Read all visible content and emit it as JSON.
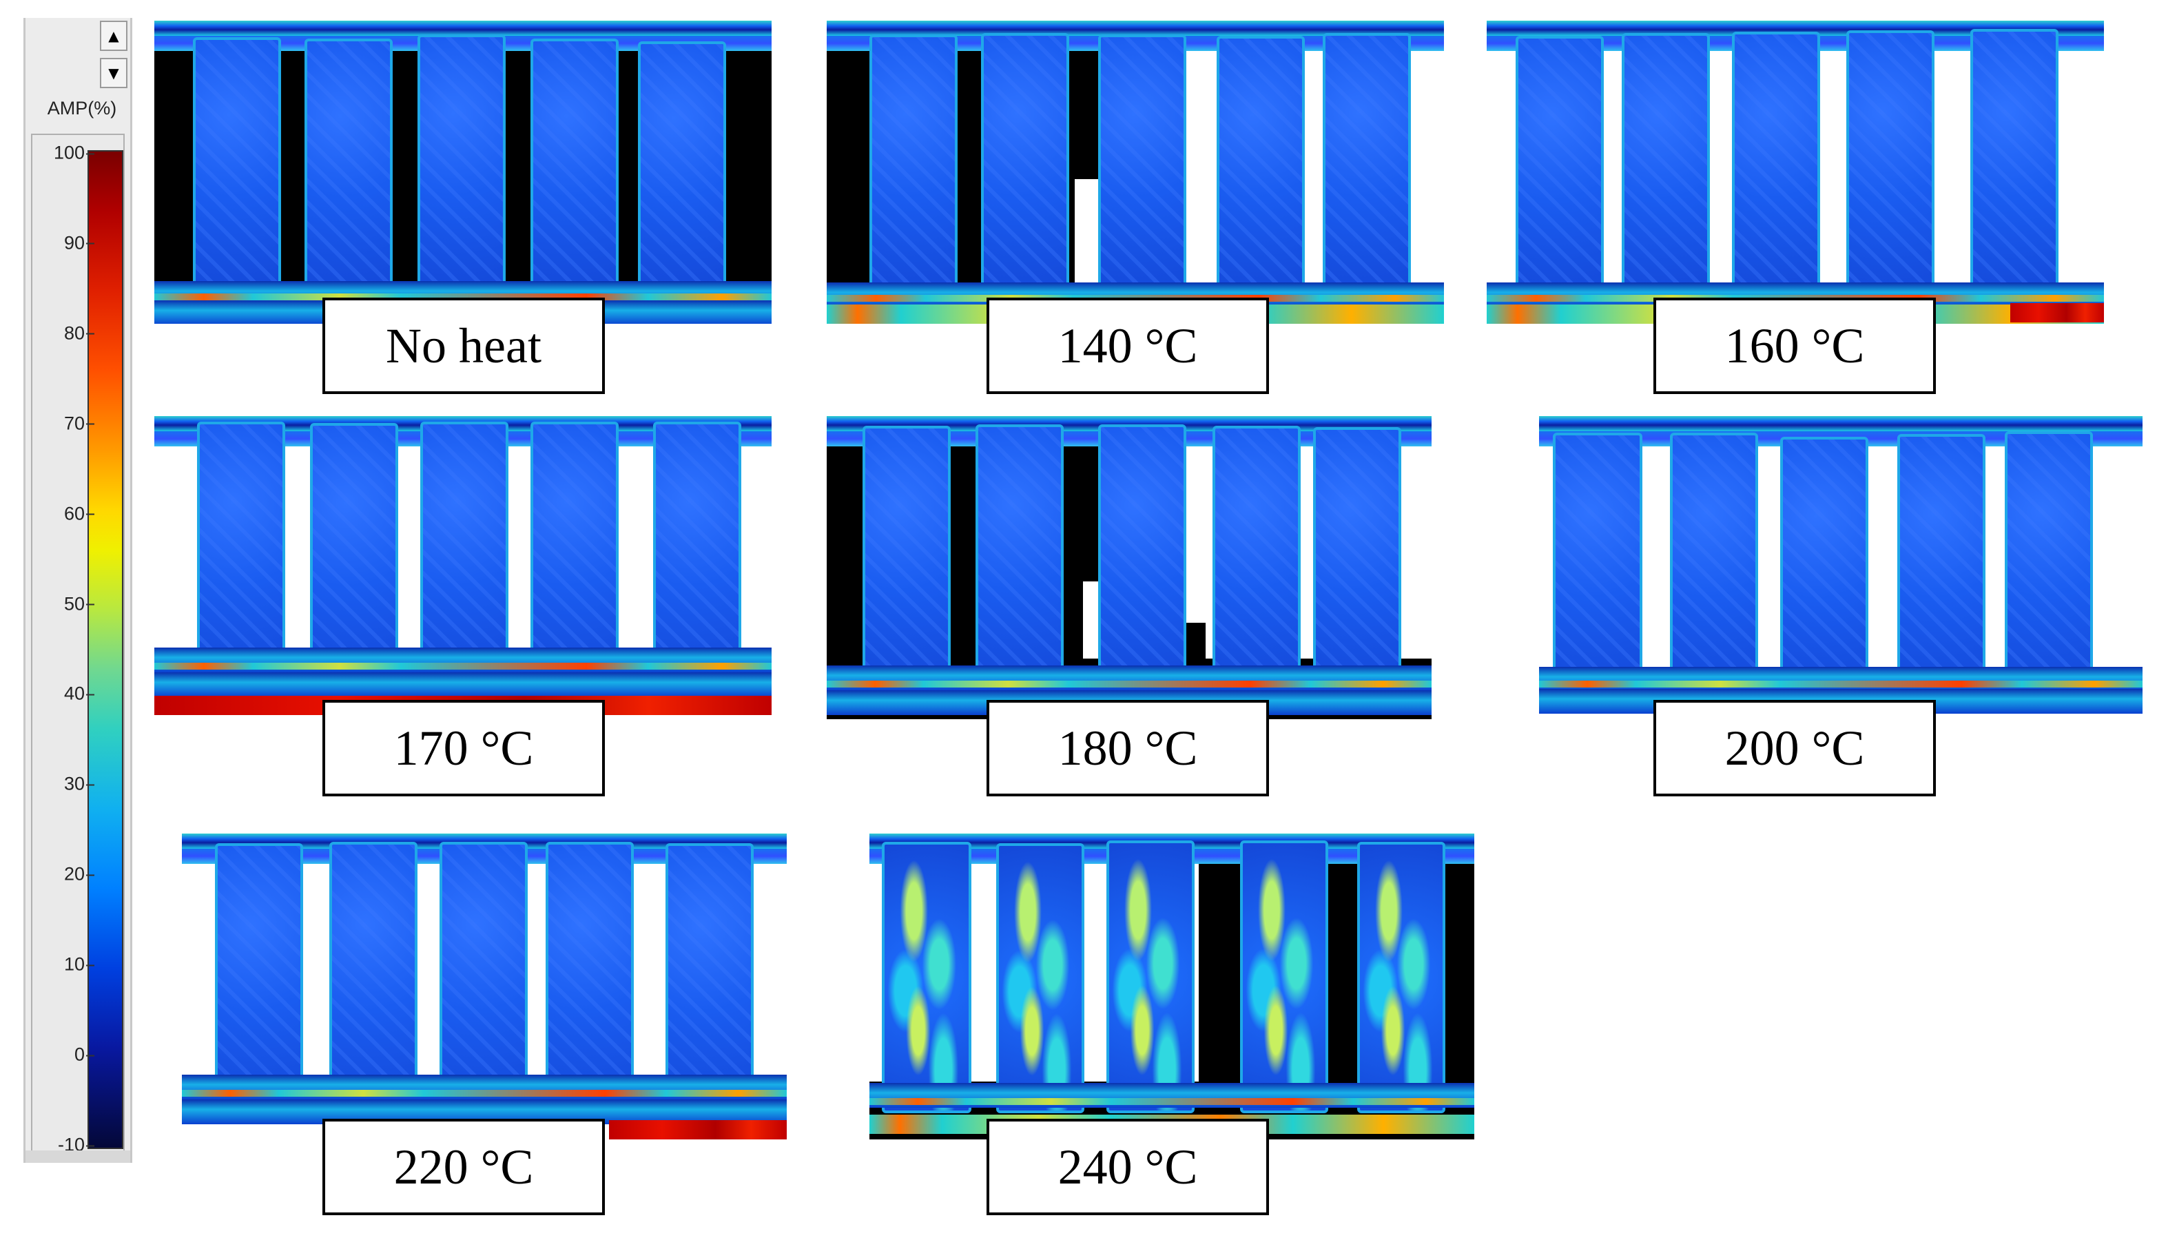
{
  "colorbar": {
    "title": "AMP(%)",
    "ticks": [
      "100",
      "90",
      "80",
      "70",
      "60",
      "50",
      "40",
      "30",
      "20",
      "10",
      "0",
      "-10"
    ],
    "range": [
      -10,
      100
    ],
    "scroll_up_glyph": "▲",
    "scroll_down_glyph": "▼"
  },
  "panels": [
    {
      "label": "No heat"
    },
    {
      "label": "140 °C"
    },
    {
      "label": "160 °C"
    },
    {
      "label": "170 °C"
    },
    {
      "label": "180 °C"
    },
    {
      "label": "200 °C"
    },
    {
      "label": "220 °C"
    },
    {
      "label": "240 °C"
    }
  ],
  "colors": {
    "specimen_blue": "#1a5cf0",
    "rail_cyan": "#20c8e0",
    "hot_red": "#c00000",
    "background_black": "#000000",
    "background_white": "#ffffff"
  }
}
